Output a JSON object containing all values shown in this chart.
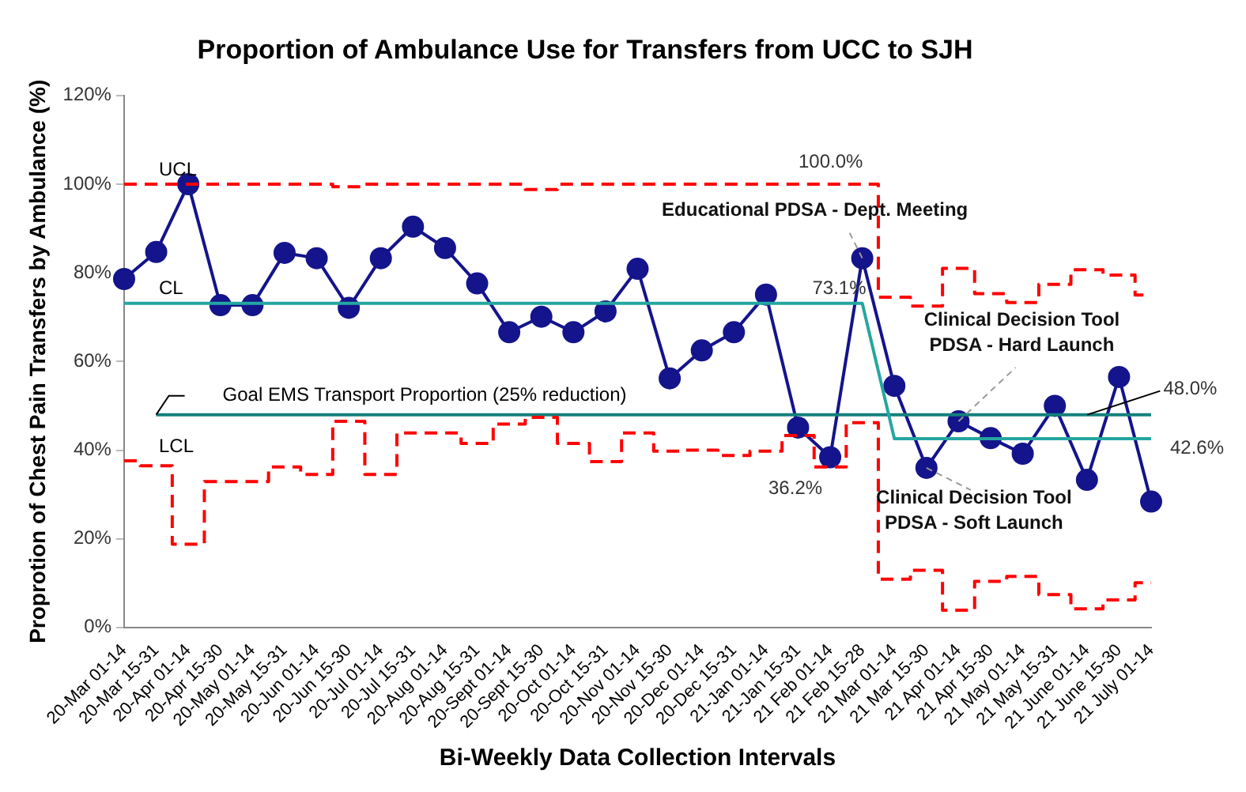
{
  "chart_data": {
    "type": "line",
    "title": "Proportion of Ambulance Use for Transfers from UCC to SJH",
    "xlabel": "Bi-Weekly Data Collection Intervals",
    "ylabel": "Proprotion of Chest Pain Transfers by Ambulance (%)",
    "categories": [
      "20-Mar 01-14",
      "20-Mar 15-31",
      "20-Apr 01-14",
      "20-Apr 15-30",
      "20-May 01-14",
      "20-May 15-31",
      "20-Jun 01-14",
      "20-Jun 15-30",
      "20-Jul 01-14",
      "20-Jul 15-31",
      "20-Aug 01-14",
      "20-Aug 15-31",
      "20-Sept 01-14",
      "20-Sept 15-30",
      "20-Oct 01-14",
      "20-Oct 15-31",
      "20-Nov 01-14",
      "20-Nov 15-30",
      "20-Dec 01-14",
      "20-Dec 15-31",
      "21-Jan 01-14",
      "21-Jan 15-31",
      "21 Feb 01-14",
      "21 Feb 15-28",
      "21 Mar 01-14",
      "21 Mar 15-30",
      "21 Apr 01-14",
      "21 Apr 15-30",
      "21 May 01-14",
      "21 May 15-31",
      "21 June 01-14",
      "21 June 15-30",
      "21 July 01-14"
    ],
    "series": [
      {
        "name": "UCL",
        "type": "step",
        "color": "#ff0000",
        "line_style": "dashed",
        "marker": "none",
        "values": [
          100,
          100,
          100,
          100,
          100,
          100,
          100,
          99.4,
          100,
          100,
          100,
          100,
          100,
          98.8,
          100,
          100,
          100,
          100,
          100,
          100,
          100,
          100,
          100,
          100,
          74.5,
          72.5,
          81,
          75.3,
          73.3,
          77.4,
          80.7,
          79.5,
          75
        ]
      },
      {
        "name": "LCL",
        "type": "step",
        "color": "#ff0000",
        "line_style": "dashed",
        "marker": "none",
        "values": [
          37.6,
          36.5,
          18.8,
          32.9,
          32.9,
          36.2,
          34.5,
          46.5,
          34.5,
          43.9,
          43.9,
          41.5,
          45.9,
          47.4,
          41.5,
          37.4,
          43.9,
          39.8,
          40,
          38.8,
          39.8,
          43.3,
          36.2,
          46.2,
          10.9,
          12.9,
          3.9,
          10.4,
          11.5,
          7.4,
          4.2,
          6.2,
          10.1
        ]
      },
      {
        "name": "CL",
        "type": "line",
        "color": "#26a6a0",
        "line_style": "solid",
        "marker": "none",
        "values": [
          73.1,
          73.1,
          73.1,
          73.1,
          73.1,
          73.1,
          73.1,
          73.1,
          73.1,
          73.1,
          73.1,
          73.1,
          73.1,
          73.1,
          73.1,
          73.1,
          73.1,
          73.1,
          73.1,
          73.1,
          73.1,
          73.1,
          73.1,
          73.1,
          42.6,
          42.6,
          42.6,
          42.6,
          42.6,
          42.6,
          42.6,
          42.6,
          42.6
        ]
      },
      {
        "name": "Goal EMS Transport Proportion (25% reduction)",
        "type": "line",
        "color": "#14807c",
        "line_style": "solid",
        "marker": "none",
        "values": [
          null,
          48.0,
          48.0,
          48.0,
          48.0,
          48.0,
          48.0,
          48.0,
          48.0,
          48.0,
          48.0,
          48.0,
          48.0,
          48.0,
          48.0,
          48.0,
          48.0,
          48.0,
          48.0,
          48.0,
          48.0,
          48.0,
          48.0,
          48.0,
          48.0,
          48.0,
          48.0,
          48.0,
          48.0,
          48.0,
          48.0,
          48.0,
          48.0
        ]
      },
      {
        "type": "line",
        "color": "#14148c",
        "line_style": "solid",
        "marker": "circle",
        "values": [
          78.6,
          84.7,
          100,
          72.7,
          72.7,
          84.5,
          83.3,
          72.1,
          83.3,
          90.4,
          85.6,
          77.6,
          66.6,
          70.1,
          66.6,
          71.3,
          80.9,
          56.2,
          62.5,
          66.6,
          75.1,
          45.1,
          38.4,
          83.3,
          54.5,
          36.0,
          46.5,
          42.7,
          39.2,
          50.0,
          33.3,
          56.5,
          28.4
        ]
      }
    ],
    "ylim": [
      0,
      120
    ],
    "yticks": [
      {
        "value": 0,
        "label": "0%"
      },
      {
        "value": 20,
        "label": "20%"
      },
      {
        "value": 40,
        "label": "40%"
      },
      {
        "value": 60,
        "label": "60%"
      },
      {
        "value": 80,
        "label": "80%"
      },
      {
        "value": 100,
        "label": "100%"
      },
      {
        "value": 120,
        "label": "120%"
      }
    ],
    "grid": false,
    "legend": false,
    "annotations": [
      {
        "text": "100.0%",
        "x": "21 Feb 15-28",
        "y": 100
      },
      {
        "text": "73.1%",
        "x": "21-Jan 15-31",
        "y": 73.1
      },
      {
        "text": "Educational PDSA - Dept. Meeting",
        "x": "21 Feb 15-28",
        "y": 83.3
      },
      {
        "text": "Clinical Decision Tool\nPDSA - Hard Launch",
        "x": "21 Apr 01-14",
        "y": 46.5
      },
      {
        "text": "Clinical Decision Tool\nPDSA - Soft Launch",
        "x": "21 Mar 15-30",
        "y": 36.0
      },
      {
        "text": "48.0%",
        "x": "21 June 15-30",
        "y": 48.0
      },
      {
        "text": "42.6%",
        "x": "21 July 01-14",
        "y": 42.6
      },
      {
        "text": "36.2%",
        "x": "21 Feb 01-14",
        "y": 36.2
      }
    ]
  }
}
